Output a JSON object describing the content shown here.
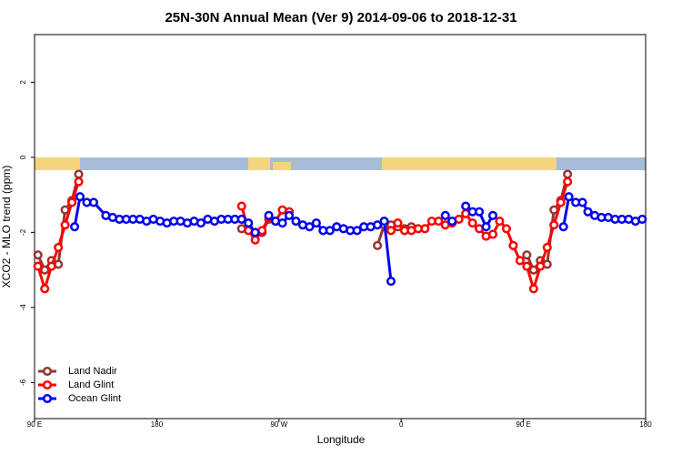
{
  "chart_data": {
    "type": "line",
    "title": "25N-30N Annual Mean (Ver 9)   2014-09-06 to 2018-12-31",
    "x_label": "Longitude",
    "y_label": "XCO2 - MLO trend (ppm)",
    "xlim": [
      90,
      540
    ],
    "ylim": [
      -6.96,
      3.27
    ],
    "xticks": [
      {
        "value": 90,
        "label": "90 E"
      },
      180,
      {
        "value": 270,
        "label": "90 W"
      },
      {
        "value": 360,
        "label": "0"
      },
      {
        "value": 450,
        "label": "90 E"
      },
      {
        "value": 540,
        "label": "180"
      }
    ],
    "yticks": [
      -6,
      -4,
      -2,
      0,
      2
    ],
    "legend": "bottom-left",
    "series": [
      {
        "name": "Land Nadir",
        "color": "#993333",
        "x": [
          92.5,
          97.5,
          102.5,
          107.5,
          112.5,
          117.5,
          122.5,
          127.5,
          242.5,
          252.5,
          257.5,
          262.5,
          267.5,
          272.5,
          342.5,
          347.5,
          352.5,
          357.5,
          362.5,
          367.5,
          372.5,
          452.5,
          457.5,
          462.5,
          467.5,
          472.5,
          477.5,
          482.5
        ],
        "values": [
          -2.6,
          -3.0,
          -2.75,
          -2.85,
          -1.4,
          -1.15,
          -0.45,
          null,
          -1.9,
          -2.05,
          -2.0,
          -1.65,
          -1.7,
          null,
          -2.35,
          -1.8,
          -1.8,
          -1.85,
          -1.9,
          -1.85,
          null,
          -2.6,
          -3.0,
          -2.75,
          -2.85,
          -1.4,
          -1.15,
          -0.45
        ]
      },
      {
        "name": "Land Glint",
        "color": "#ff0000",
        "x": [
          92.5,
          97.5,
          102.5,
          107.5,
          112.5,
          117.5,
          122.5,
          127.5,
          242.5,
          247.5,
          252.5,
          257.5,
          262.5,
          267.5,
          272.5,
          277.5,
          282.5,
          352.5,
          357.5,
          362.5,
          367.5,
          372.5,
          377.5,
          382.5,
          387.5,
          392.5,
          397.5,
          402.5,
          407.5,
          412.5,
          417.5,
          422.5,
          427.5,
          432.5,
          437.5,
          442.5,
          447.5,
          452.5,
          457.5,
          462.5,
          467.5,
          472.5,
          477.5,
          482.5
        ],
        "values": [
          -2.9,
          -3.5,
          -2.9,
          -2.4,
          -1.8,
          -1.2,
          -0.65,
          null,
          -1.3,
          -1.95,
          -2.2,
          -1.95,
          -1.6,
          -1.7,
          -1.4,
          -1.45,
          null,
          -1.95,
          -1.75,
          -1.95,
          -1.95,
          -1.9,
          -1.9,
          -1.7,
          -1.7,
          -1.8,
          -1.75,
          -1.65,
          -1.5,
          -1.75,
          -1.9,
          -2.1,
          -2.05,
          -1.7,
          -1.9,
          -2.35,
          -2.75,
          -2.9,
          -3.5,
          -2.9,
          -2.4,
          -1.8,
          -1.2,
          -0.65
        ]
      },
      {
        "name": "Ocean Glint",
        "color": "#0000ee",
        "x": [
          119.5,
          123.5,
          128.5,
          133.5,
          142.5,
          147.5,
          152.5,
          157.5,
          162.5,
          167.5,
          172.5,
          177.5,
          182.5,
          187.5,
          192.5,
          197.5,
          202.5,
          207.5,
          212.5,
          217.5,
          222.5,
          227.5,
          232.5,
          237.5,
          242.5,
          247.5,
          252.5,
          257.5,
          262.5,
          267.5,
          272.5,
          277.5,
          282.5,
          287.5,
          292.5,
          297.5,
          302.5,
          307.5,
          312.5,
          317.5,
          322.5,
          327.5,
          332.5,
          337.5,
          342.5,
          347.5,
          352.5,
          357.5,
          392.5,
          397.5,
          402.5,
          407.5,
          412.5,
          417.5,
          422.5,
          427.5,
          432.5,
          479.5,
          483.5,
          488.5,
          493.5,
          497.5,
          502.5,
          507.5,
          512.5,
          517.5,
          522.5,
          527.5,
          532.5,
          537.5
        ],
        "values": [
          -1.85,
          -1.05,
          -1.2,
          -1.2,
          -1.55,
          -1.6,
          -1.65,
          -1.65,
          -1.65,
          -1.65,
          -1.7,
          -1.65,
          -1.7,
          -1.75,
          -1.7,
          -1.7,
          -1.75,
          -1.7,
          -1.75,
          -1.65,
          -1.7,
          -1.65,
          -1.65,
          -1.65,
          -1.65,
          -1.75,
          -2.0,
          null,
          -1.55,
          -1.7,
          -1.75,
          -1.55,
          -1.7,
          -1.8,
          -1.85,
          -1.75,
          -1.95,
          -1.95,
          -1.85,
          -1.9,
          -1.95,
          -1.95,
          -1.85,
          -1.85,
          -1.8,
          -1.7,
          -3.3,
          null,
          -1.55,
          -1.7,
          null,
          -1.3,
          -1.45,
          -1.45,
          -1.85,
          -1.55,
          null,
          -1.85,
          -1.05,
          -1.2,
          -1.2,
          -1.45,
          -1.55,
          -1.6,
          -1.6,
          -1.65,
          -1.65,
          -1.65,
          -1.7,
          -1.65
        ]
      }
    ]
  }
}
